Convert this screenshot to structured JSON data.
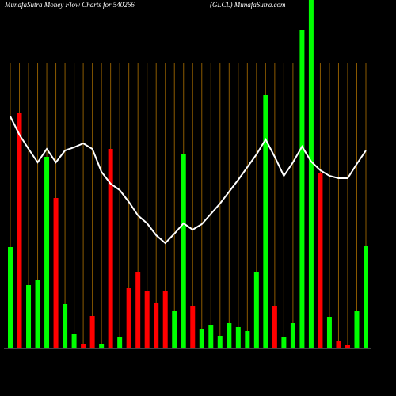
{
  "chart_data": {
    "type": "bar",
    "title": "MunafaSutra  Money Flow  Charts for 540266",
    "subtitle": "(GLCL) MunafaSutra.com",
    "categories": [
      null,
      null,
      null,
      null,
      null,
      null,
      null,
      null,
      null,
      null,
      null,
      null,
      null,
      null,
      null,
      null,
      null,
      null,
      null,
      null,
      null,
      null,
      null,
      null,
      null,
      null,
      null,
      null,
      null,
      null,
      null,
      null,
      null,
      null,
      null,
      null,
      null,
      null,
      null,
      null
    ],
    "values": [
      128,
      297,
      80,
      87,
      242,
      190,
      56,
      18,
      6,
      41,
      6,
      252,
      14,
      76,
      97,
      72,
      58,
      72,
      47,
      246,
      54,
      24,
      30,
      16,
      32,
      27,
      22,
      97,
      320,
      54,
      14,
      32,
      402,
      440,
      221,
      40,
      9,
      4,
      47,
      129
    ],
    "colors": [
      "#00ff00",
      "#ff0000",
      "#00ff00",
      "#00ff00",
      "#00ff00",
      "#ff0000",
      "#00ff00",
      "#00ff00",
      "#ff0000",
      "#ff0000",
      "#00ff00",
      "#ff0000",
      "#00ff00",
      "#ff0000",
      "#ff0000",
      "#ff0000",
      "#ff0000",
      "#ff0000",
      "#00ff00",
      "#00ff00",
      "#ff0000",
      "#00ff00",
      "#00ff00",
      "#00ff00",
      "#00ff00",
      "#00ff00",
      "#00ff00",
      "#00ff00",
      "#00ff00",
      "#ff0000",
      "#00ff00",
      "#00ff00",
      "#00ff00",
      "#00ff00",
      "#ff0000",
      "#00ff00",
      "#ff0000",
      "#ff0000",
      "#00ff00",
      "#00ff00"
    ],
    "line": {
      "color": "#ffffff",
      "values": [
        293,
        270,
        252,
        235,
        252,
        235,
        250,
        254,
        259,
        252,
        223,
        208,
        200,
        185,
        168,
        158,
        143,
        133,
        145,
        158,
        150,
        157,
        170,
        183,
        198,
        213,
        229,
        245,
        264,
        242,
        218,
        235,
        255,
        236,
        225,
        218,
        215,
        215,
        233,
        250
      ]
    },
    "ylim": [
      0,
      440
    ],
    "grid": true,
    "grid_color": "#8b5a00"
  }
}
